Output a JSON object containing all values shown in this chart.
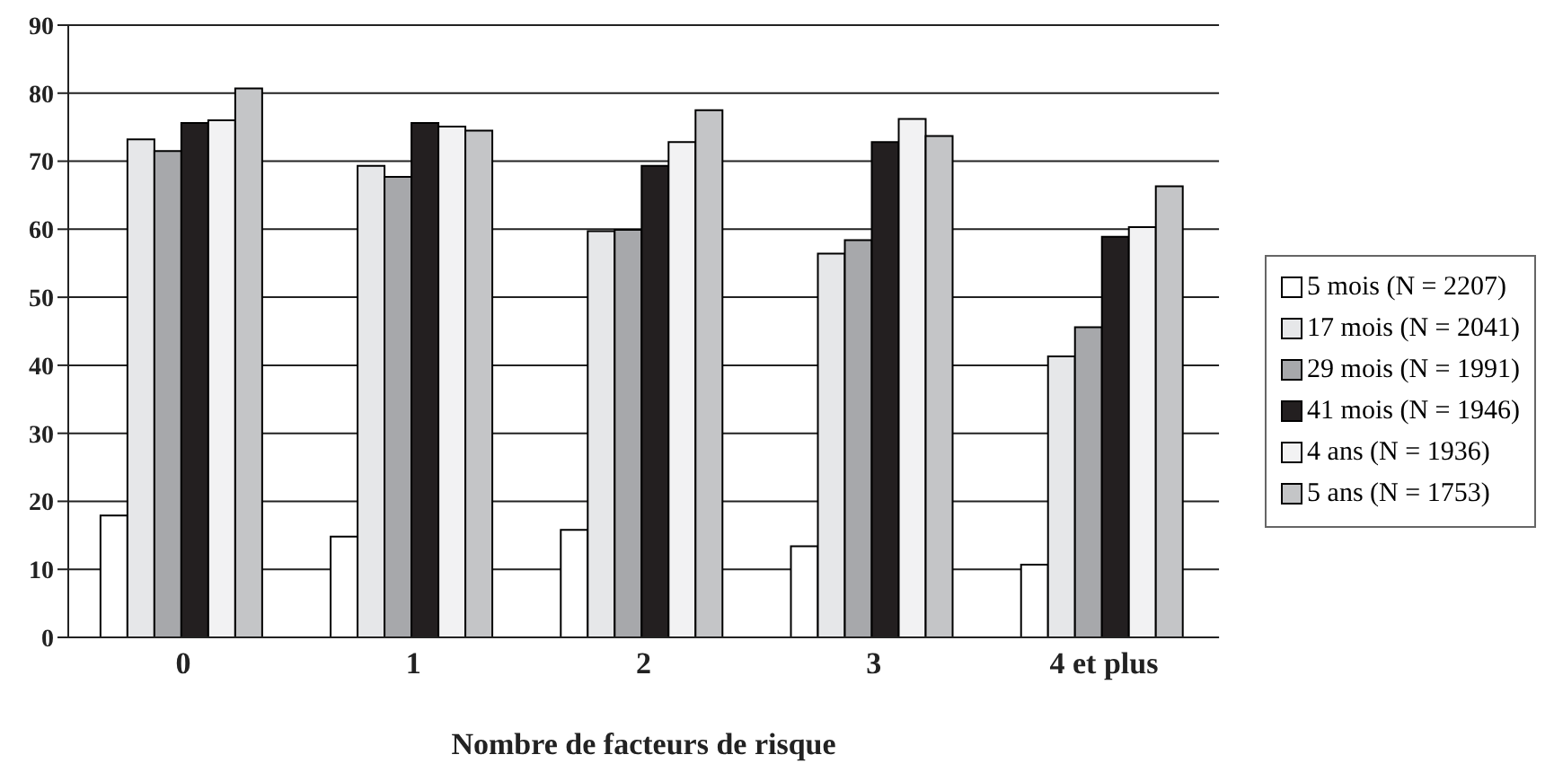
{
  "chart_data": {
    "type": "bar",
    "xlabel": "Nombre de facteurs de risque",
    "categories": [
      "0",
      "1",
      "2",
      "3",
      "4 et plus"
    ],
    "series": [
      {
        "name": "5 mois (N = 2207)",
        "color": "#ffffff",
        "values": [
          17.9,
          14.8,
          15.8,
          13.4,
          10.7
        ]
      },
      {
        "name": "17 mois (N = 2041)",
        "color": "#e6e7e9",
        "values": [
          73.2,
          69.3,
          59.7,
          56.4,
          41.3
        ]
      },
      {
        "name": "29 mois (N = 1991)",
        "color": "#a7a8ab",
        "values": [
          71.5,
          67.7,
          59.9,
          58.4,
          45.6
        ]
      },
      {
        "name": "41 mois (N = 1946)",
        "color": "#231f20",
        "values": [
          75.6,
          75.6,
          69.3,
          72.8,
          58.9
        ]
      },
      {
        "name": "4 ans (N = 1936)",
        "color": "#f2f2f3",
        "values": [
          76.0,
          75.1,
          72.8,
          76.2,
          60.3
        ]
      },
      {
        "name": "5 ans (N = 1753)",
        "color": "#c4c5c7",
        "values": [
          80.7,
          74.5,
          77.5,
          73.7,
          66.3
        ]
      }
    ],
    "ylim": [
      0,
      90
    ],
    "yticks": [
      0,
      10,
      20,
      30,
      40,
      50,
      60,
      70,
      80,
      90
    ],
    "grid": "y",
    "legend": "right"
  }
}
